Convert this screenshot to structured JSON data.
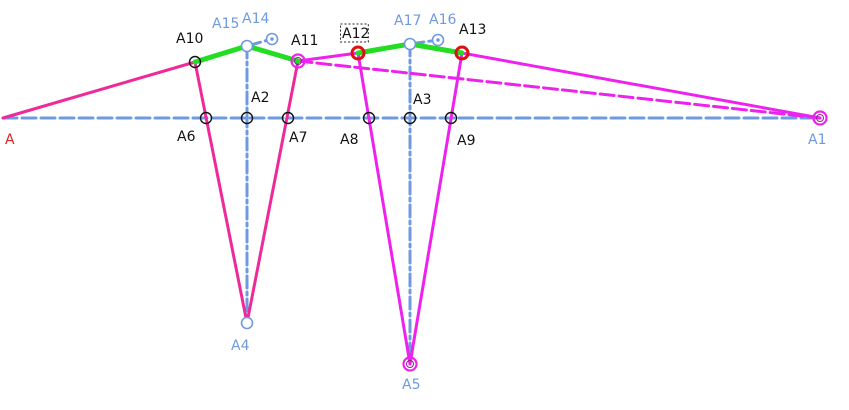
{
  "colors": {
    "blue": "#6f9ae0",
    "pink": "#ee2a9a",
    "magenta": "#ee22ee",
    "green": "#22dd22",
    "red": "#dd1111",
    "black": "#111111",
    "label_black": "#111111",
    "label_blue": "#6f9ae0",
    "label_red": "#dd2222"
  },
  "points": [
    {
      "id": "A",
      "label": "A",
      "label_color": "red",
      "marker": "none"
    },
    {
      "id": "A1",
      "label": "A1",
      "label_color": "blue",
      "marker": "magenta-ring"
    },
    {
      "id": "A2",
      "label": "A2",
      "label_color": "black",
      "marker": "black-ring"
    },
    {
      "id": "A3",
      "label": "A3",
      "label_color": "black",
      "marker": "black-ring"
    },
    {
      "id": "A4",
      "label": "A4",
      "label_color": "blue",
      "marker": "blue-ring"
    },
    {
      "id": "A5",
      "label": "A5",
      "label_color": "blue",
      "marker": "magenta-ring"
    },
    {
      "id": "A6",
      "label": "A6",
      "label_color": "black",
      "marker": "black-ring"
    },
    {
      "id": "A7",
      "label": "A7",
      "label_color": "black",
      "marker": "black-ring"
    },
    {
      "id": "A8",
      "label": "A8",
      "label_color": "black",
      "marker": "black-ring"
    },
    {
      "id": "A9",
      "label": "A9",
      "label_color": "black",
      "marker": "black-ring"
    },
    {
      "id": "A10",
      "label": "A10",
      "label_color": "black",
      "marker": "black-ring"
    },
    {
      "id": "A11",
      "label": "A11",
      "label_color": "black",
      "marker": "magenta-ring"
    },
    {
      "id": "A12",
      "label": "A12",
      "label_color": "black",
      "marker": "red-ring",
      "boxed": true
    },
    {
      "id": "A13",
      "label": "A13",
      "label_color": "black",
      "marker": "red-ring"
    },
    {
      "id": "A14",
      "label": "A14",
      "label_color": "blue",
      "marker": "blue-target"
    },
    {
      "id": "A15",
      "label": "A15",
      "label_color": "blue",
      "marker": "blue-ring"
    },
    {
      "id": "A16",
      "label": "A16",
      "label_color": "blue",
      "marker": "blue-target"
    },
    {
      "id": "A17",
      "label": "A17",
      "label_color": "blue",
      "marker": "blue-ring"
    }
  ],
  "segments": [
    {
      "from": "A",
      "to": "A1",
      "color": "blue",
      "style": "dashed"
    },
    {
      "from": "A15",
      "to": "A4",
      "color": "blue",
      "style": "dashdot"
    },
    {
      "from": "A17",
      "to": "A5",
      "color": "blue",
      "style": "dashdot"
    },
    {
      "from": "A15",
      "to": "A14",
      "color": "blue",
      "style": "dashed"
    },
    {
      "from": "A17",
      "to": "A16",
      "color": "blue",
      "style": "dashed"
    },
    {
      "from": "A",
      "to": "A10",
      "color": "pink",
      "style": "solid"
    },
    {
      "from": "A10",
      "to": "A4",
      "color": "pink",
      "style": "solid"
    },
    {
      "from": "A4",
      "to": "A11",
      "color": "pink",
      "style": "solid"
    },
    {
      "from": "A11",
      "to": "A12",
      "color": "magenta",
      "style": "solid"
    },
    {
      "from": "A12",
      "to": "A5",
      "color": "magenta",
      "style": "solid"
    },
    {
      "from": "A5",
      "to": "A13",
      "color": "magenta",
      "style": "solid"
    },
    {
      "from": "A13",
      "to": "A1",
      "color": "magenta",
      "style": "solid"
    },
    {
      "from": "A11",
      "to": "A1",
      "color": "magenta",
      "style": "dashed"
    },
    {
      "from": "A10",
      "to": "A15",
      "color": "green",
      "style": "solid"
    },
    {
      "from": "A15",
      "to": "A11",
      "color": "green",
      "style": "solid"
    },
    {
      "from": "A12",
      "to": "A17",
      "color": "green",
      "style": "solid"
    },
    {
      "from": "A17",
      "to": "A13",
      "color": "green",
      "style": "solid"
    }
  ]
}
